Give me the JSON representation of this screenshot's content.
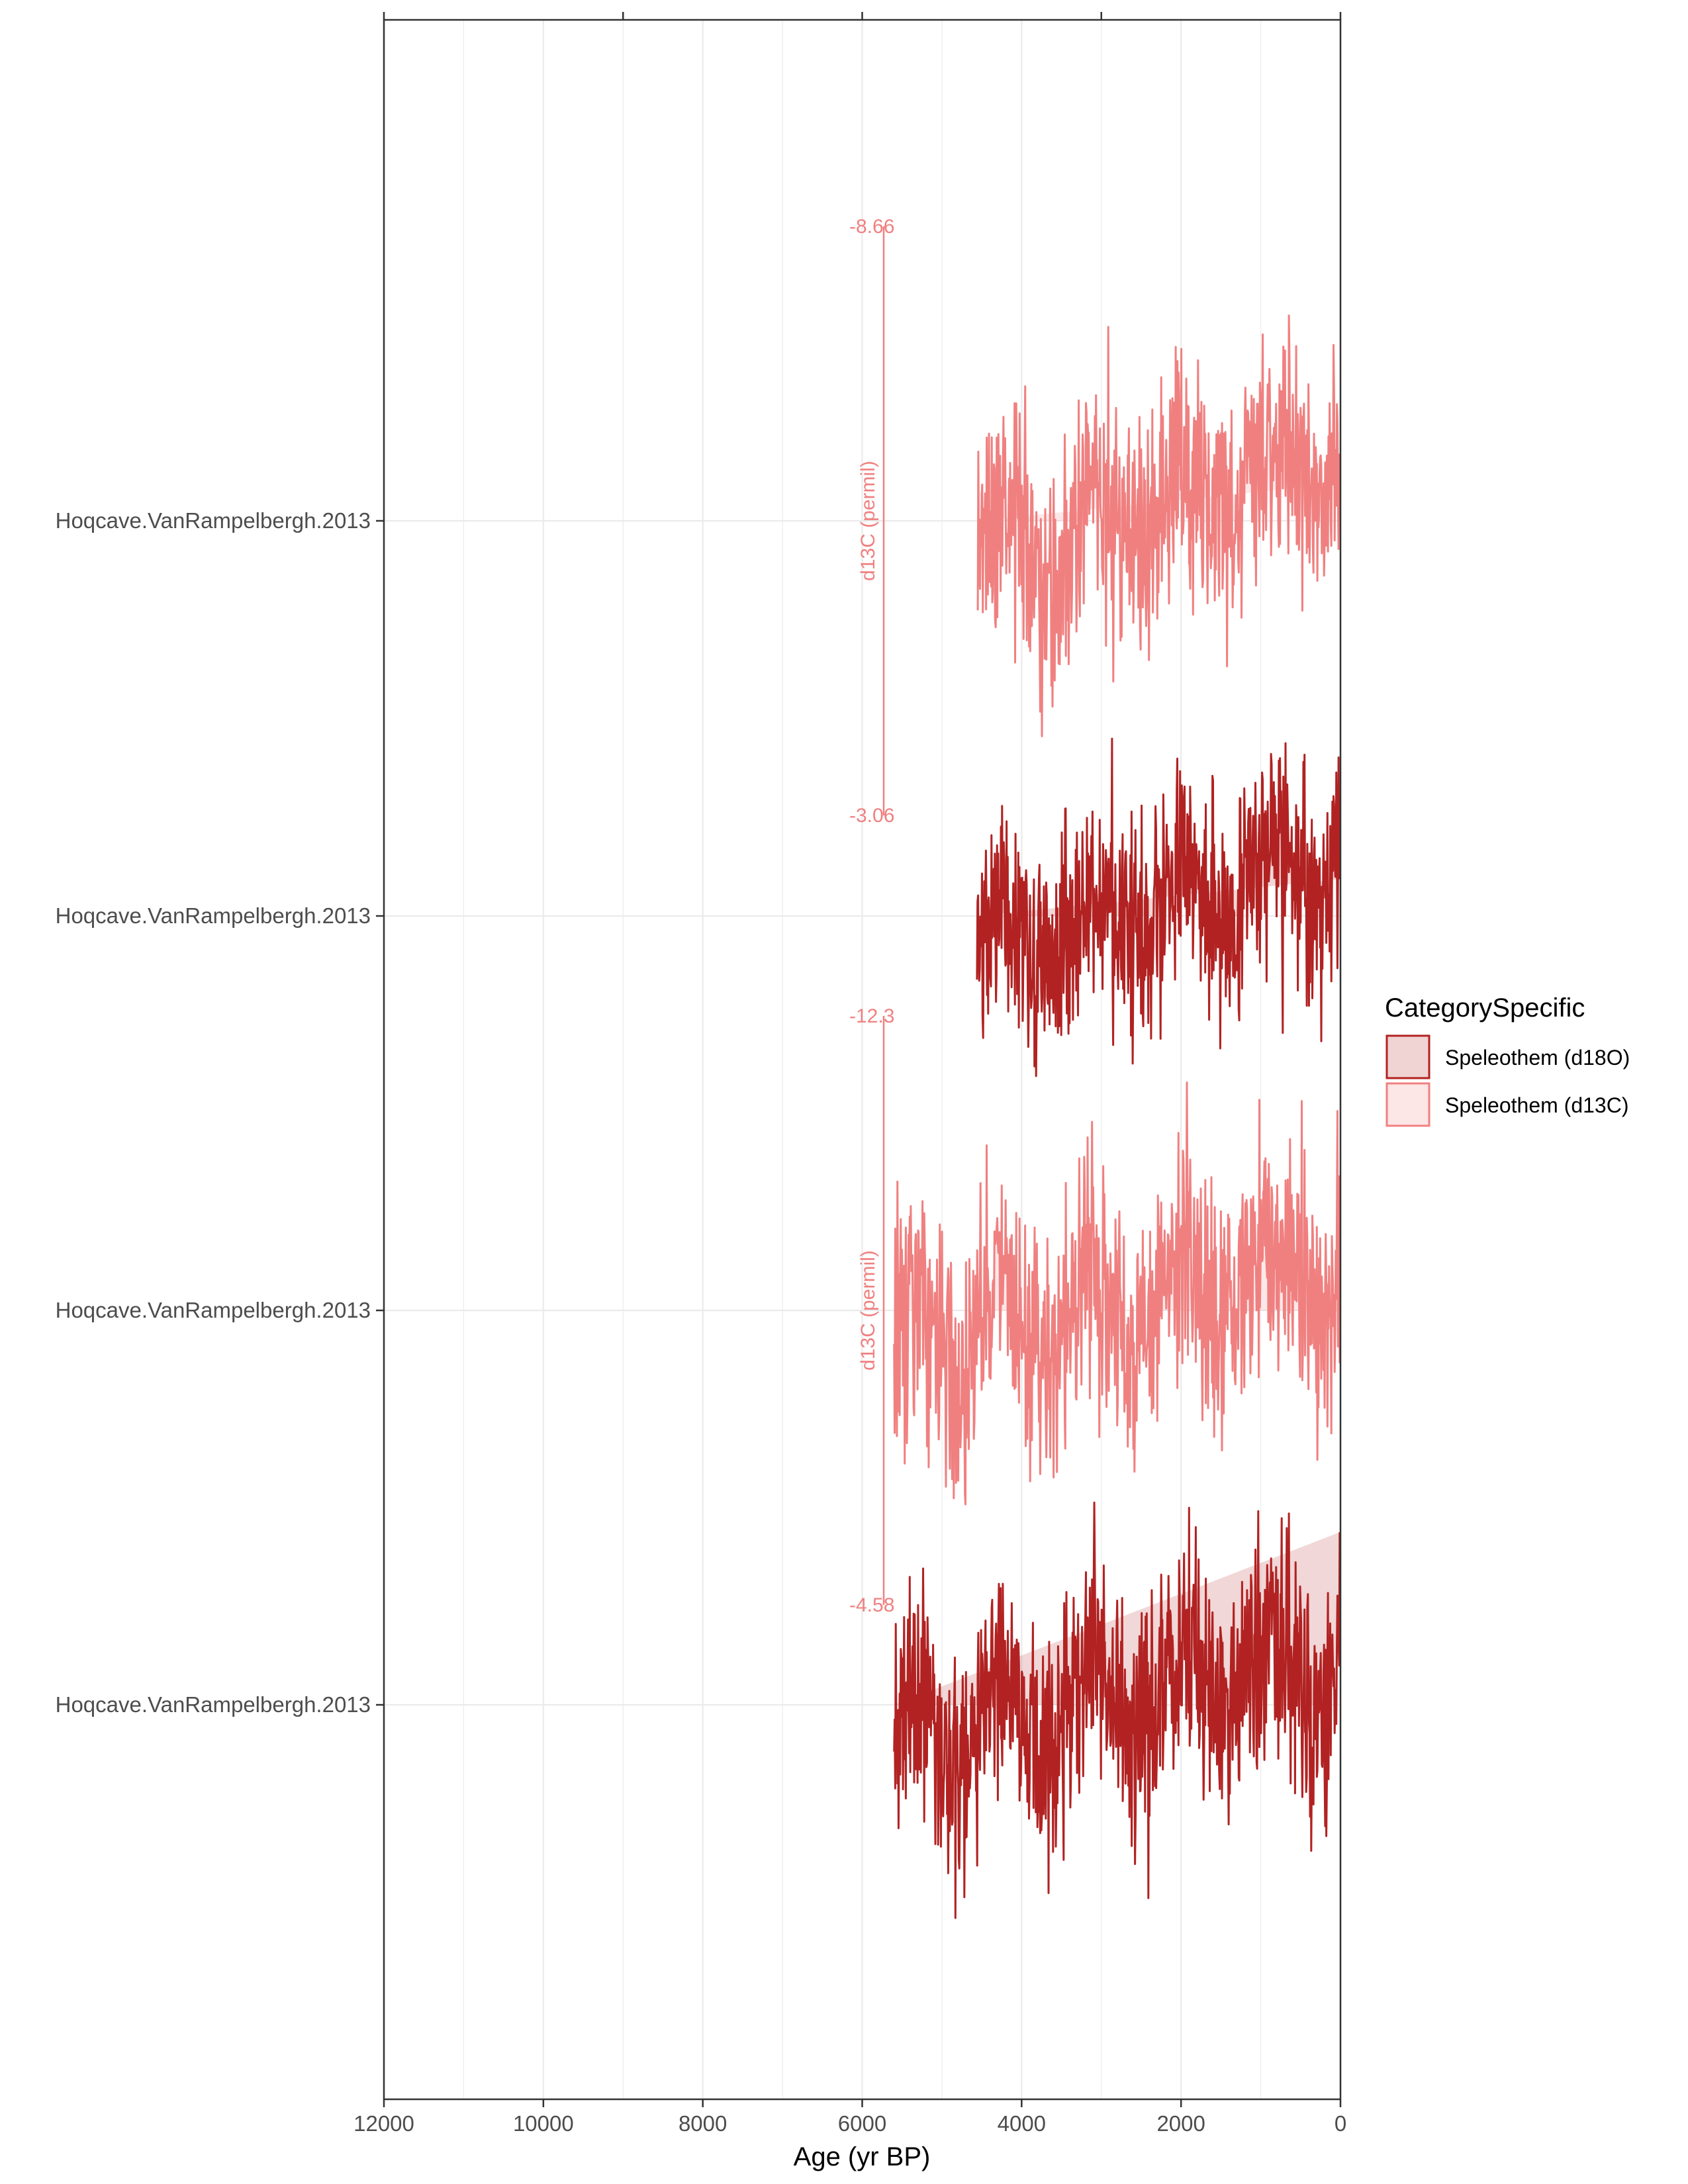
{
  "chart_data": {
    "type": "line",
    "x_label": "Age (yr BP)",
    "x_axis": {
      "min": 0,
      "max": 12000,
      "reversed": true,
      "ticks": [
        12000,
        10000,
        8000,
        6000,
        4000,
        2000,
        0
      ],
      "tick_labels": [
        "12000",
        "10000",
        "8000",
        "6000",
        "4000",
        "2000",
        "0"
      ]
    },
    "grid": true,
    "legend": {
      "title": "CategorySpecific",
      "position": "right",
      "entries": [
        {
          "label": "Speleothem (d18O)",
          "color": "#b22222"
        },
        {
          "label": "Speleothem (d13C)",
          "color": "#f08080"
        }
      ]
    },
    "rows": [
      {
        "label": "Hoqcave.VanRampelbergh.2013",
        "series": "Speleothem (d13C)",
        "color": "#f08080",
        "age_range": [
          10,
          4550
        ],
        "scale": {
          "top": "-8.66",
          "bottom": "-3.06",
          "title": "d13C (permil)"
        }
      },
      {
        "label": "Hoqcave.VanRampelbergh.2013",
        "series": "Speleothem (d18O)",
        "color": "#b22222",
        "age_range": [
          10,
          4560
        ]
      },
      {
        "label": "Hoqcave.VanRampelbergh.2013",
        "series": "Speleothem (d13C)",
        "color": "#f08080",
        "age_range": [
          10,
          5600
        ],
        "scale": {
          "top": "-12.3",
          "bottom": "-4.58",
          "title": "d13C (permil)"
        }
      },
      {
        "label": "Hoqcave.VanRampelbergh.2013",
        "series": "Speleothem (d18O)",
        "color": "#b22222",
        "age_range": [
          10,
          5600
        ]
      }
    ]
  },
  "colors": {
    "d18O": "#b22222",
    "d13C": "#f08080",
    "grid": "#ebebeb",
    "axis": "#333333"
  }
}
